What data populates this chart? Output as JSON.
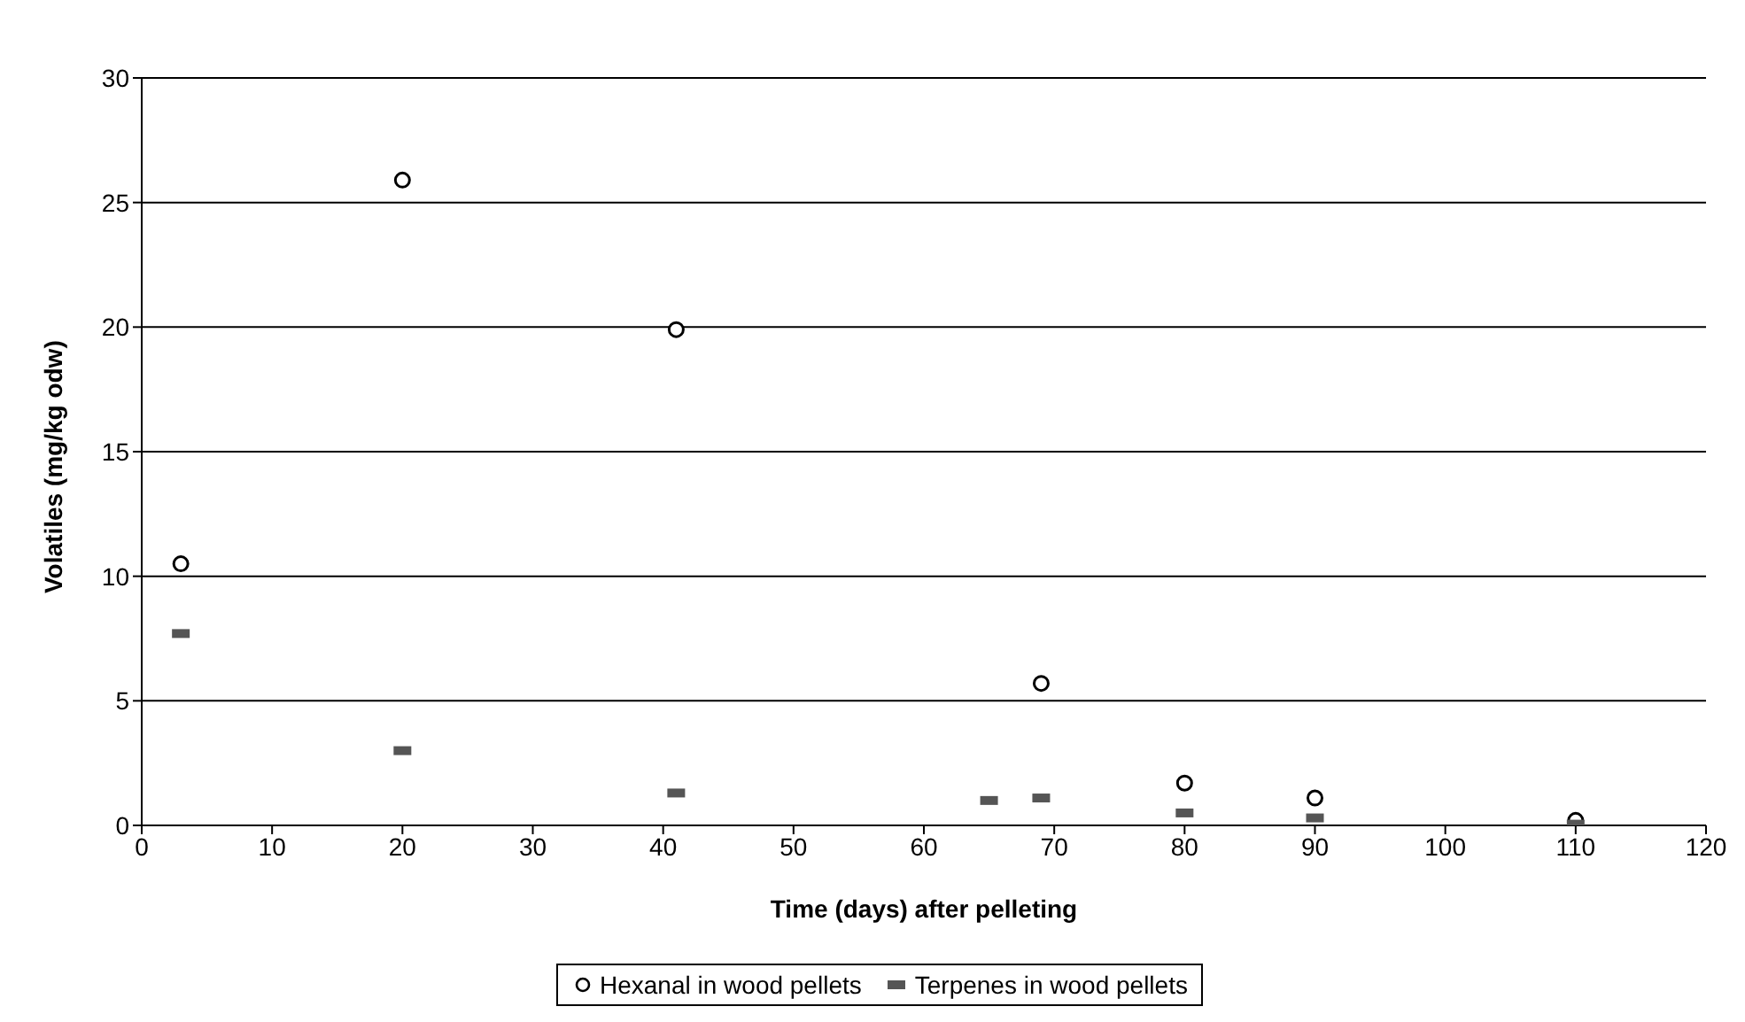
{
  "chart_data": {
    "type": "scatter",
    "xlabel": "Time (days) after pelleting",
    "ylabel": "Volatiles (mg/kg odw)",
    "xlim": [
      0,
      120
    ],
    "xticks": [
      0,
      10,
      20,
      30,
      40,
      50,
      60,
      70,
      80,
      90,
      100,
      110,
      120
    ],
    "ylim": [
      0,
      30
    ],
    "yticks": [
      0,
      5,
      10,
      15,
      20,
      25,
      30
    ],
    "grid": "y",
    "legend": "bottom",
    "series": [
      {
        "name": "Hexanal in wood pellets",
        "color": "#000000",
        "marker": "circle",
        "x": [
          3,
          20,
          41,
          69,
          80,
          90,
          110
        ],
        "values": [
          10.5,
          25.9,
          19.9,
          5.7,
          1.7,
          1.1,
          0.2
        ]
      },
      {
        "name": "Terpenes in wood pellets",
        "color": "#555555",
        "marker": "square",
        "x": [
          3,
          20,
          41,
          65,
          69,
          80,
          90,
          110
        ],
        "values": [
          7.7,
          3.0,
          1.3,
          1.0,
          1.1,
          0.5,
          0.3,
          0.05
        ]
      }
    ]
  }
}
